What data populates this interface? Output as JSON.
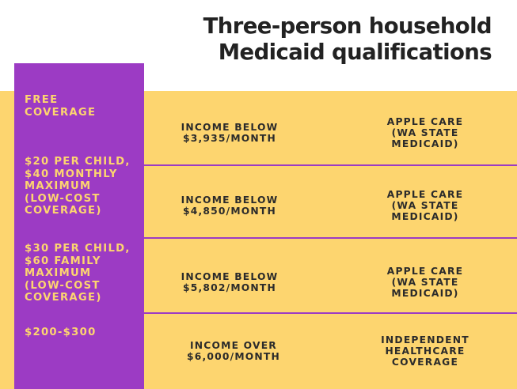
{
  "title": {
    "line1": "Three-person household",
    "line2": "Medicaid qualifications"
  },
  "rows": [
    {
      "cost": "FREE\nCOVERAGE",
      "income": "INCOME BELOW\n$3,935/MONTH",
      "program": "APPLE CARE\n(WA STATE\nMEDICAID)"
    },
    {
      "cost": "$20 PER CHILD,\n$40 MONTHLY\nMAXIMUM\n(LOW-COST\nCOVERAGE)",
      "income": "INCOME BELOW\n$4,850/MONTH",
      "program": "APPLE CARE\n(WA STATE\nMEDICAID)"
    },
    {
      "cost": "$30 PER CHILD,\n$60 FAMILY\nMAXIMUM\n(LOW-COST\nCOVERAGE)",
      "income": "INCOME BELOW\n$5,802/MONTH",
      "program": "APPLE CARE\n(WA STATE\nMEDICAID)"
    },
    {
      "cost": "$200-$300",
      "income": "INCOME OVER\n$6,000/MONTH",
      "program": "INDEPENDENT\nHEALTHCARE\nCOVERAGE"
    }
  ],
  "colors": {
    "purple": "#9c3bc4",
    "yellow": "#fdd56f",
    "dark_text": "#222222"
  }
}
